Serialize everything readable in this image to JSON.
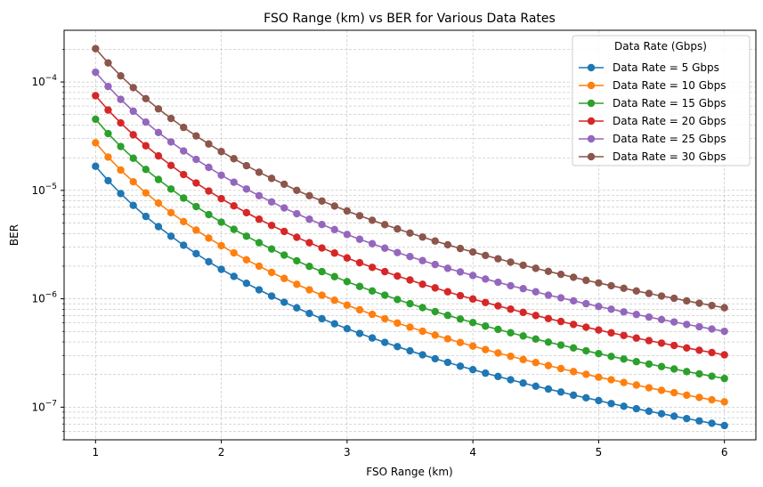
{
  "chart_data": {
    "type": "line",
    "title": "FSO Range (km) vs BER for Various Data Rates",
    "xlabel": "FSO Range (km)",
    "ylabel": "BER",
    "xlim": [
      0.75,
      6.25
    ],
    "ylim": [
      5e-08,
      0.0003
    ],
    "yscale": "log",
    "grid": true,
    "x_ticks": [
      1,
      2,
      3,
      4,
      5,
      6
    ],
    "y_ticks": [
      {
        "value": 1e-07,
        "mantissa": "10",
        "exp": "−7"
      },
      {
        "value": 1e-06,
        "mantissa": "10",
        "exp": "−6"
      },
      {
        "value": 1e-05,
        "mantissa": "10",
        "exp": "−5"
      },
      {
        "value": 0.0001,
        "mantissa": "10",
        "exp": "−4"
      }
    ],
    "legend": {
      "title": "Data Rate (Gbps)",
      "placement": "top-right"
    },
    "x": [
      1.0,
      1.1,
      1.2,
      1.3,
      1.4,
      1.5,
      1.6,
      1.7,
      1.8,
      1.9,
      2.0,
      2.1,
      2.2,
      2.3,
      2.4,
      2.5,
      2.6,
      2.7,
      2.8,
      2.9,
      3.0,
      3.1,
      3.2,
      3.3,
      3.4,
      3.5,
      3.6,
      3.7,
      3.8,
      3.9,
      4.0,
      4.1,
      4.2,
      4.3,
      4.4,
      4.5,
      4.6,
      4.7,
      4.8,
      4.9,
      5.0,
      5.1,
      5.2,
      5.3,
      5.4,
      5.5,
      5.6,
      5.7,
      5.8,
      5.9,
      6.0
    ],
    "series": [
      {
        "name": "Data Rate = 5 Gbps",
        "color": "#1f77b4",
        "values": [
          1.67e-05,
          1.23e-05,
          9.34e-06,
          7.27e-06,
          5.75e-06,
          4.63e-06,
          3.78e-06,
          3.12e-06,
          2.61e-06,
          2.2e-06,
          1.87e-06,
          1.61e-06,
          1.39e-06,
          1.21e-06,
          1.06e-06,
          9.3e-07,
          8.24e-07,
          7.33e-07,
          6.55e-07,
          5.88e-07,
          5.3e-07,
          4.79e-07,
          4.35e-07,
          3.96e-07,
          3.62e-07,
          3.31e-07,
          3.04e-07,
          2.8e-07,
          2.59e-07,
          2.39e-07,
          2.22e-07,
          2.06e-07,
          1.92e-07,
          1.79e-07,
          1.67e-07,
          1.56e-07,
          1.47e-07,
          1.38e-07,
          1.29e-07,
          1.22e-07,
          1.15e-07,
          1.08e-07,
          1.02e-07,
          9.68e-08,
          9.17e-08,
          8.7e-08,
          8.26e-08,
          7.85e-08,
          7.46e-08,
          7.1e-08,
          6.77e-08
        ]
      },
      {
        "name": "Data Rate = 10 Gbps",
        "color": "#ff7f0e",
        "values": [
          2.75e-05,
          2.03e-05,
          1.54e-05,
          1.2e-05,
          9.48e-06,
          7.64e-06,
          6.23e-06,
          5.15e-06,
          4.3e-06,
          3.63e-06,
          3.09e-06,
          2.65e-06,
          2.29e-06,
          2e-06,
          1.75e-06,
          1.54e-06,
          1.36e-06,
          1.21e-06,
          1.08e-06,
          9.7e-07,
          8.74e-07,
          7.91e-07,
          7.18e-07,
          6.54e-07,
          5.97e-07,
          5.47e-07,
          5.02e-07,
          4.62e-07,
          4.27e-07,
          3.95e-07,
          3.66e-07,
          3.4e-07,
          3.16e-07,
          2.95e-07,
          2.75e-07,
          2.58e-07,
          2.42e-07,
          2.27e-07,
          2.13e-07,
          2.01e-07,
          1.89e-07,
          1.79e-07,
          1.69e-07,
          1.6e-07,
          1.51e-07,
          1.43e-07,
          1.36e-07,
          1.29e-07,
          1.23e-07,
          1.17e-07,
          1.12e-07
        ]
      },
      {
        "name": "Data Rate = 15 Gbps",
        "color": "#2ca02c",
        "values": [
          4.53e-05,
          3.34e-05,
          2.54e-05,
          1.98e-05,
          1.56e-05,
          1.26e-05,
          1.03e-05,
          8.49e-06,
          7.09e-06,
          5.98e-06,
          5.09e-06,
          4.37e-06,
          3.78e-06,
          3.29e-06,
          2.88e-06,
          2.53e-06,
          2.24e-06,
          1.99e-06,
          1.78e-06,
          1.6e-06,
          1.44e-06,
          1.3e-06,
          1.18e-06,
          1.08e-06,
          9.84e-07,
          9.01e-07,
          8.28e-07,
          7.62e-07,
          7.03e-07,
          6.51e-07,
          6.03e-07,
          5.6e-07,
          5.22e-07,
          4.86e-07,
          4.54e-07,
          4.25e-07,
          3.98e-07,
          3.74e-07,
          3.52e-07,
          3.31e-07,
          3.12e-07,
          2.94e-07,
          2.78e-07,
          2.63e-07,
          2.5e-07,
          2.37e-07,
          2.25e-07,
          2.13e-07,
          2.03e-07,
          1.93e-07,
          1.84e-07
        ]
      },
      {
        "name": "Data Rate = 20 Gbps",
        "color": "#d62728",
        "values": [
          7.47e-05,
          5.51e-05,
          4.19e-05,
          3.26e-05,
          2.58e-05,
          2.08e-05,
          1.7e-05,
          1.4e-05,
          1.17e-05,
          9.86e-06,
          8.39e-06,
          7.2e-06,
          6.23e-06,
          5.42e-06,
          4.75e-06,
          4.18e-06,
          3.69e-06,
          3.29e-06,
          2.94e-06,
          2.64e-06,
          2.38e-06,
          2.15e-06,
          1.95e-06,
          1.78e-06,
          1.62e-06,
          1.49e-06,
          1.36e-06,
          1.26e-06,
          1.16e-06,
          1.07e-06,
          9.95e-07,
          9.24e-07,
          8.6e-07,
          8.02e-07,
          7.49e-07,
          7.01e-07,
          6.57e-07,
          6.17e-07,
          5.8e-07,
          5.46e-07,
          5.15e-07,
          4.85e-07,
          4.59e-07,
          4.34e-07,
          4.11e-07,
          3.9e-07,
          3.71e-07,
          3.52e-07,
          3.35e-07,
          3.19e-07,
          3.04e-07
        ]
      },
      {
        "name": "Data Rate = 25 Gbps",
        "color": "#9467bd",
        "values": [
          0.000123,
          9.09e-05,
          6.91e-05,
          5.38e-05,
          4.26e-05,
          3.42e-05,
          2.8e-05,
          2.31e-05,
          1.93e-05,
          1.63e-05,
          1.38e-05,
          1.19e-05,
          1.03e-05,
          8.94e-06,
          7.83e-06,
          6.89e-06,
          6.09e-06,
          5.42e-06,
          4.84e-06,
          4.35e-06,
          3.92e-06,
          3.54e-06,
          3.22e-06,
          2.93e-06,
          2.67e-06,
          2.45e-06,
          2.25e-06,
          2.07e-06,
          1.91e-06,
          1.77e-06,
          1.64e-06,
          1.52e-06,
          1.42e-06,
          1.32e-06,
          1.24e-06,
          1.16e-06,
          1.08e-06,
          1.02e-06,
          9.57e-07,
          9.01e-07,
          8.49e-07,
          8.01e-07,
          7.57e-07,
          7.16e-07,
          6.78e-07,
          6.43e-07,
          6.11e-07,
          5.8e-07,
          5.52e-07,
          5.26e-07,
          5.01e-07
        ]
      },
      {
        "name": "Data Rate = 30 Gbps",
        "color": "#8c564b",
        "values": [
          0.000203,
          0.00015,
          0.000114,
          8.87e-05,
          7.02e-05,
          5.65e-05,
          4.61e-05,
          3.81e-05,
          3.18e-05,
          2.68e-05,
          2.28e-05,
          1.96e-05,
          1.69e-05,
          1.47e-05,
          1.29e-05,
          1.14e-05,
          1e-05,
          8.93e-06,
          7.98e-06,
          7.17e-06,
          6.46e-06,
          5.84e-06,
          5.3e-06,
          4.83e-06,
          4.41e-06,
          4.04e-06,
          3.71e-06,
          3.41e-06,
          3.15e-06,
          2.91e-06,
          2.7e-06,
          2.51e-06,
          2.34e-06,
          2.18e-06,
          2.04e-06,
          1.91e-06,
          1.79e-06,
          1.68e-06,
          1.58e-06,
          1.48e-06,
          1.4e-06,
          1.32e-06,
          1.25e-06,
          1.18e-06,
          1.12e-06,
          1.06e-06,
          1.01e-06,
          9.57e-07,
          9.1e-07,
          8.67e-07,
          8.26e-07
        ]
      }
    ]
  }
}
